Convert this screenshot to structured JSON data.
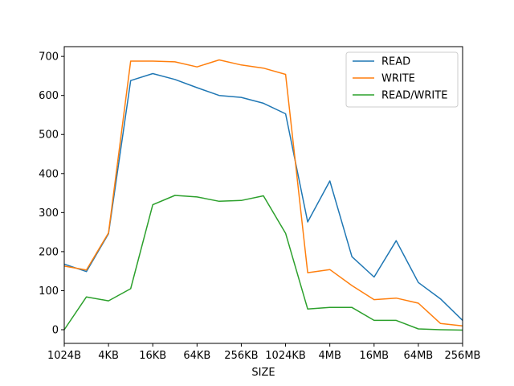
{
  "chart_data": {
    "type": "line",
    "xlabel": "SIZE",
    "ylabel": "",
    "ylim": [
      -35,
      725
    ],
    "yticks": [
      0,
      100,
      200,
      300,
      400,
      500,
      600,
      700
    ],
    "x_tick_labels": [
      "1024B",
      "4KB",
      "16KB",
      "64KB",
      "256KB",
      "1024KB",
      "4MB",
      "16MB",
      "64MB",
      "256MB"
    ],
    "x_tick_indices": [
      0,
      2,
      4,
      6,
      8,
      10,
      12,
      14,
      16,
      18
    ],
    "categories": [
      "1024B",
      "2KB",
      "4KB",
      "8KB",
      "16KB",
      "32KB",
      "64KB",
      "128KB",
      "256KB",
      "512KB",
      "1024KB",
      "2MB",
      "4MB",
      "8MB",
      "16MB",
      "32MB",
      "64MB",
      "128MB",
      "256MB"
    ],
    "legend_position": "upper right",
    "grid": false,
    "series": [
      {
        "name": "READ",
        "color": "#1f77b4",
        "values": [
          168,
          149,
          246,
          638,
          656,
          641,
          620,
          600,
          595,
          580,
          553,
          276,
          381,
          187,
          135,
          228,
          121,
          79,
          24
        ]
      },
      {
        "name": "WRITE",
        "color": "#ff7f0e",
        "values": [
          163,
          153,
          248,
          688,
          688,
          686,
          673,
          691,
          678,
          670,
          654,
          146,
          154,
          113,
          77,
          81,
          68,
          16,
          10
        ]
      },
      {
        "name": "READ/WRITE",
        "color": "#2ca02c",
        "values": [
          0,
          84,
          74,
          105,
          320,
          344,
          340,
          329,
          331,
          343,
          247,
          53,
          57,
          57,
          24,
          24,
          2,
          0,
          -1
        ]
      }
    ]
  }
}
